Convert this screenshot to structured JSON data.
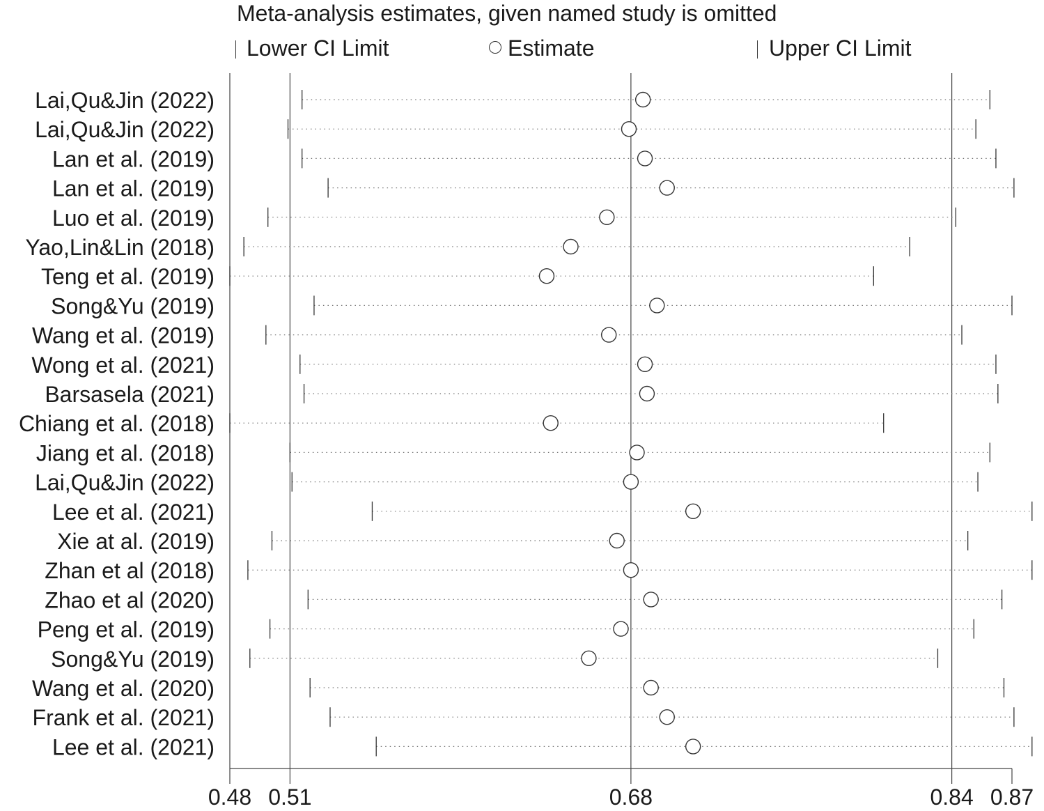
{
  "chart_data": {
    "type": "forest",
    "title": "Meta-analysis estimates, given named study is omitted",
    "legend": {
      "lower": "Lower CI Limit",
      "estimate": "Estimate",
      "upper": "Upper CI Limit",
      "placement": "top"
    },
    "x_ticks": [
      0.48,
      0.51,
      0.68,
      0.84,
      0.87
    ],
    "x_tick_labels": [
      "0.48",
      "0.51",
      "0.68",
      "0.84",
      "0.87"
    ],
    "reference_lines": [
      0.51,
      0.68,
      0.84
    ],
    "xlim": [
      0.48,
      0.87
    ],
    "studies": [
      {
        "label": "Lai,Qu&Jin (2022)",
        "lower": 0.516,
        "estimate": 0.686,
        "upper": 0.859
      },
      {
        "label": "Lai,Qu&Jin (2022)",
        "lower": 0.509,
        "estimate": 0.679,
        "upper": 0.852
      },
      {
        "label": "Lan et al. (2019)",
        "lower": 0.516,
        "estimate": 0.687,
        "upper": 0.862
      },
      {
        "label": "Lan et al. (2019)",
        "lower": 0.529,
        "estimate": 0.698,
        "upper": 0.871
      },
      {
        "label": "Luo et al. (2019)",
        "lower": 0.499,
        "estimate": 0.668,
        "upper": 0.842
      },
      {
        "label": "Yao,Lin&Lin (2018)",
        "lower": 0.487,
        "estimate": 0.65,
        "upper": 0.819
      },
      {
        "label": "Teng et al. (2019)",
        "lower": 0.48,
        "estimate": 0.638,
        "upper": 0.801
      },
      {
        "label": "Song&Yu (2019)",
        "lower": 0.522,
        "estimate": 0.693,
        "upper": 0.87
      },
      {
        "label": "Wang et al. (2019)",
        "lower": 0.498,
        "estimate": 0.669,
        "upper": 0.845
      },
      {
        "label": "Wong et al. (2021)",
        "lower": 0.515,
        "estimate": 0.687,
        "upper": 0.862
      },
      {
        "label": "Barsasela (2021)",
        "lower": 0.517,
        "estimate": 0.688,
        "upper": 0.863
      },
      {
        "label": "Chiang et al. (2018)",
        "lower": 0.48,
        "estimate": 0.64,
        "upper": 0.806
      },
      {
        "label": "Jiang et al. (2018)",
        "lower": 0.51,
        "estimate": 0.683,
        "upper": 0.859
      },
      {
        "label": "Lai,Qu&Jin (2022)",
        "lower": 0.511,
        "estimate": 0.68,
        "upper": 0.853
      },
      {
        "label": "Lee et al. (2021)",
        "lower": 0.551,
        "estimate": 0.711,
        "upper": 0.88
      },
      {
        "label": "Xie at al. (2019)",
        "lower": 0.501,
        "estimate": 0.673,
        "upper": 0.848
      },
      {
        "label": "Zhan et al (2018)",
        "lower": 0.489,
        "estimate": 0.68,
        "upper": 0.88
      },
      {
        "label": "Zhao et al (2020)",
        "lower": 0.519,
        "estimate": 0.69,
        "upper": 0.865
      },
      {
        "label": "Peng et al. (2019)",
        "lower": 0.5,
        "estimate": 0.675,
        "upper": 0.851
      },
      {
        "label": "Song&Yu (2019)",
        "lower": 0.49,
        "estimate": 0.659,
        "upper": 0.833
      },
      {
        "label": "Wang et al. (2020)",
        "lower": 0.52,
        "estimate": 0.69,
        "upper": 0.866
      },
      {
        "label": "Frank et al. (2021)",
        "lower": 0.53,
        "estimate": 0.698,
        "upper": 0.871
      },
      {
        "label": "Lee et al. (2021)",
        "lower": 0.553,
        "estimate": 0.711,
        "upper": 0.88
      }
    ]
  }
}
